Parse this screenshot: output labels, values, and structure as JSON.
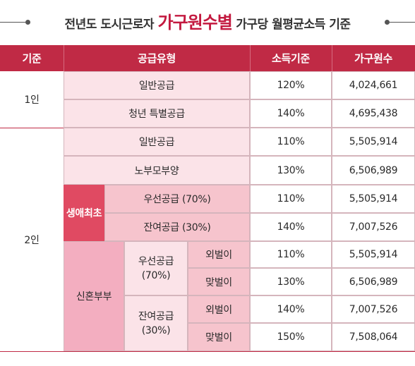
{
  "title": {
    "prefix": "전년도 도시근로자",
    "highlight": "가구원수별",
    "suffix": "가구당 월평균소득 기준"
  },
  "headers": [
    "기준",
    "공급유형",
    "소득기준",
    "가구원수"
  ],
  "groups": {
    "one_person": "1인",
    "two_person": "2인",
    "first_life": "생애최초",
    "newlywed": "신혼부부",
    "priority_70": "우선공급\n(70%)",
    "remaining_30": "잔여공급\n(30%)",
    "single_income": "외벌이",
    "dual_income": "맞벌이"
  },
  "rows": [
    {
      "type": "일반공급",
      "income": "120%",
      "amount": "4,024,661"
    },
    {
      "type": "청년 특별공급",
      "income": "140%",
      "amount": "4,695,438"
    },
    {
      "type": "일반공급",
      "income": "110%",
      "amount": "5,505,914"
    },
    {
      "type": "노부모부양",
      "income": "130%",
      "amount": "6,506,989"
    },
    {
      "type": "우선공급 (70%)",
      "income": "110%",
      "amount": "5,505,914"
    },
    {
      "type": "잔여공급 (30%)",
      "income": "140%",
      "amount": "7,007,526"
    },
    {
      "type": "외벌이",
      "income": "110%",
      "amount": "5,505,914"
    },
    {
      "type": "맞벌이",
      "income": "130%",
      "amount": "6,506,989"
    },
    {
      "type": "외벌이",
      "income": "140%",
      "amount": "7,007,526"
    },
    {
      "type": "맞벌이",
      "income": "150%",
      "amount": "7,508,064"
    }
  ]
}
